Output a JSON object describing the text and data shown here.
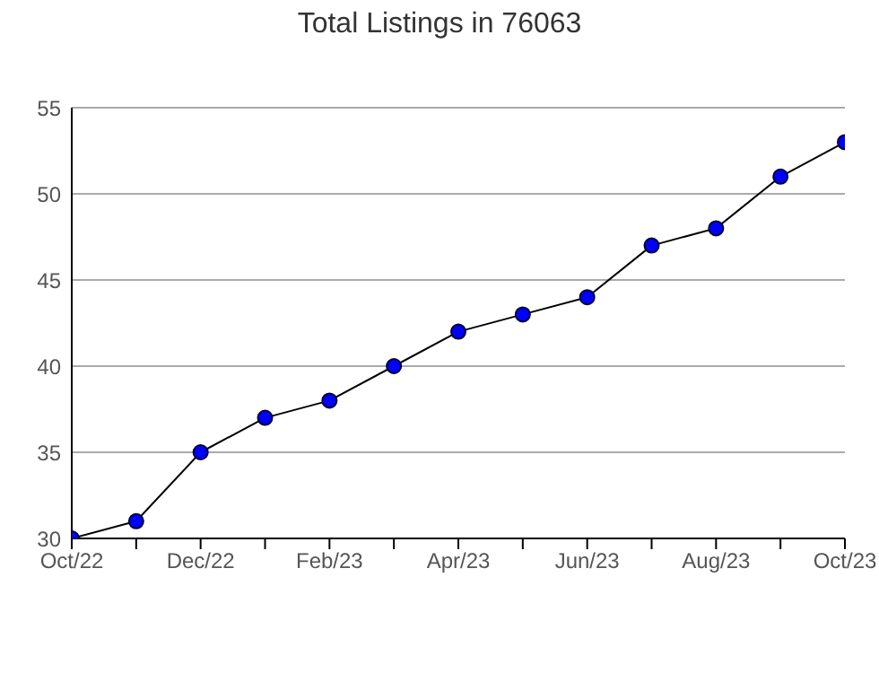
{
  "chart_data": {
    "type": "line",
    "title": "Total Listings in 76063",
    "categories": [
      "Oct/22",
      null,
      "Dec/22",
      null,
      "Feb/23",
      null,
      "Apr/23",
      null,
      "Jun/23",
      null,
      "Aug/23",
      null,
      "Oct/23"
    ],
    "series": [
      {
        "color": "#0000ff",
        "values": [
          30,
          31,
          35,
          37,
          38,
          40,
          42,
          43,
          44,
          47,
          48,
          51,
          53
        ]
      }
    ],
    "ylim": [
      30,
      55
    ],
    "yticks": [
      30,
      35,
      40,
      45,
      50,
      55
    ],
    "grid": "y",
    "marker": "circle",
    "line_style": "solid",
    "legend": false
  }
}
